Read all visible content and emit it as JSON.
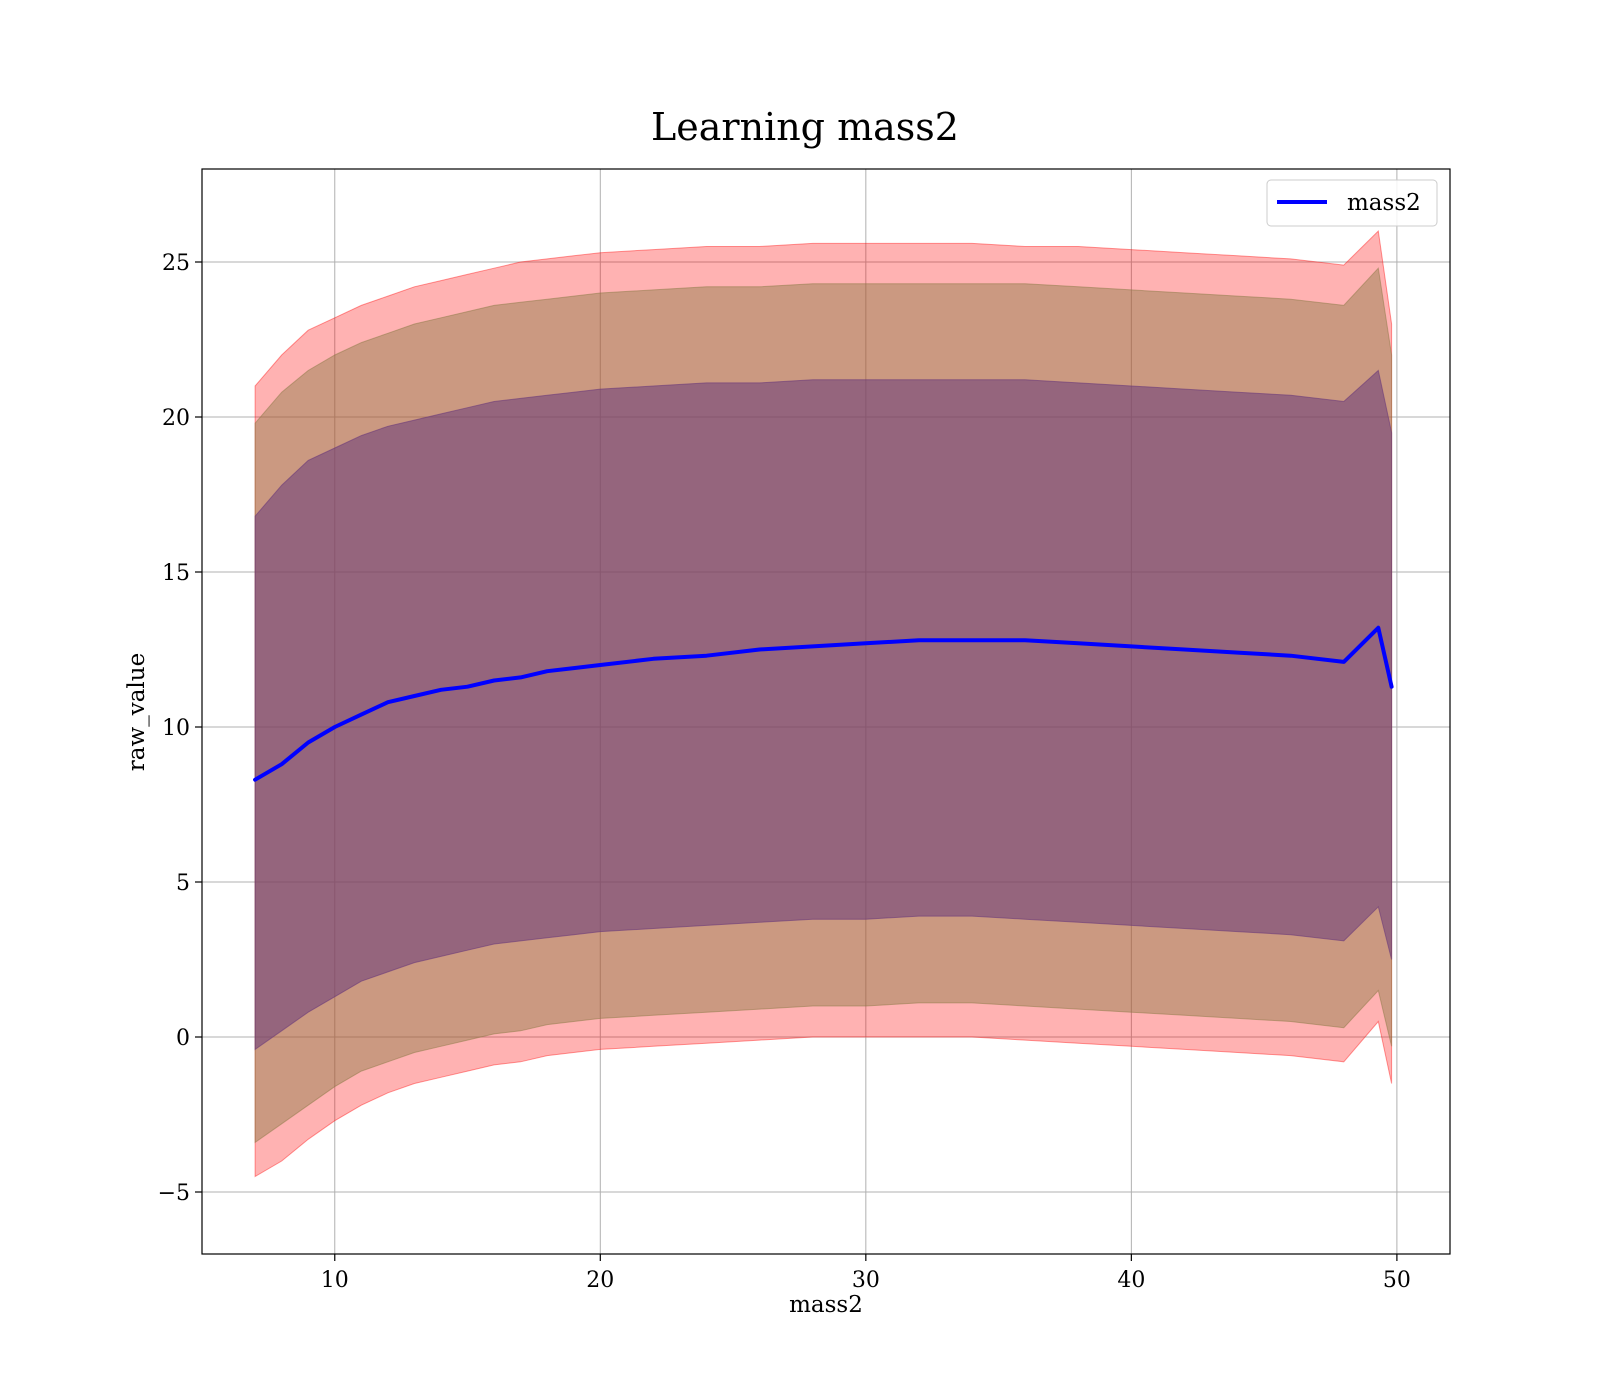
{
  "chart_data": {
    "type": "line",
    "title": "Learning mass2",
    "xlabel": "mass2",
    "ylabel": "raw_value",
    "xlim": [
      5,
      52
    ],
    "ylim": [
      -7,
      28
    ],
    "xticks": [
      10,
      20,
      30,
      40,
      50
    ],
    "yticks": [
      -5,
      0,
      5,
      10,
      15,
      20,
      25
    ],
    "xtick_labels": [
      "10",
      "20",
      "30",
      "40",
      "50"
    ],
    "ytick_labels": [
      "−5",
      "0",
      "5",
      "10",
      "15",
      "20",
      "25"
    ],
    "grid": true,
    "legend": {
      "position": "top-right",
      "entries": [
        "mass2"
      ]
    },
    "colors": {
      "line": "#0000ff",
      "band_outer": "#ff0000",
      "band_mid": "#8b7a45",
      "band_inner": "#6a3a7a",
      "grid": "#b0b0b0"
    },
    "x": [
      7,
      8,
      9,
      10,
      11,
      12,
      13,
      14,
      15,
      16,
      17,
      18,
      19,
      20,
      22,
      24,
      26,
      28,
      30,
      32,
      34,
      36,
      38,
      40,
      42,
      44,
      46,
      48,
      49.3,
      49.8
    ],
    "series": [
      {
        "name": "mass2",
        "role": "line",
        "values": [
          8.3,
          8.8,
          9.5,
          10.0,
          10.4,
          10.8,
          11.0,
          11.2,
          11.3,
          11.5,
          11.6,
          11.8,
          11.9,
          12.0,
          12.2,
          12.3,
          12.5,
          12.6,
          12.7,
          12.8,
          12.8,
          12.8,
          12.7,
          12.6,
          12.5,
          12.4,
          12.3,
          12.1,
          13.2,
          11.3
        ]
      },
      {
        "role": "band_outer",
        "upper": [
          21.0,
          22.0,
          22.8,
          23.2,
          23.6,
          23.9,
          24.2,
          24.4,
          24.6,
          24.8,
          25.0,
          25.1,
          25.2,
          25.3,
          25.4,
          25.5,
          25.5,
          25.6,
          25.6,
          25.6,
          25.6,
          25.5,
          25.5,
          25.4,
          25.3,
          25.2,
          25.1,
          24.9,
          26.0,
          23.0
        ],
        "lower": [
          -4.5,
          -4.0,
          -3.3,
          -2.7,
          -2.2,
          -1.8,
          -1.5,
          -1.3,
          -1.1,
          -0.9,
          -0.8,
          -0.6,
          -0.5,
          -0.4,
          -0.3,
          -0.2,
          -0.1,
          0.0,
          0.0,
          0.0,
          0.0,
          -0.1,
          -0.2,
          -0.3,
          -0.4,
          -0.5,
          -0.6,
          -0.8,
          0.5,
          -1.5
        ]
      },
      {
        "role": "band_mid",
        "upper": [
          19.8,
          20.8,
          21.5,
          22.0,
          22.4,
          22.7,
          23.0,
          23.2,
          23.4,
          23.6,
          23.7,
          23.8,
          23.9,
          24.0,
          24.1,
          24.2,
          24.2,
          24.3,
          24.3,
          24.3,
          24.3,
          24.3,
          24.2,
          24.1,
          24.0,
          23.9,
          23.8,
          23.6,
          24.8,
          22.0
        ]
      },
      {
        "role": "band_mid",
        "lower": [
          -3.4,
          -2.8,
          -2.2,
          -1.6,
          -1.1,
          -0.8,
          -0.5,
          -0.3,
          -0.1,
          0.1,
          0.2,
          0.4,
          0.5,
          0.6,
          0.7,
          0.8,
          0.9,
          1.0,
          1.0,
          1.1,
          1.1,
          1.0,
          0.9,
          0.8,
          0.7,
          0.6,
          0.5,
          0.3,
          1.5,
          -0.3
        ]
      },
      {
        "role": "band_inner",
        "upper": [
          16.8,
          17.8,
          18.6,
          19.0,
          19.4,
          19.7,
          19.9,
          20.1,
          20.3,
          20.5,
          20.6,
          20.7,
          20.8,
          20.9,
          21.0,
          21.1,
          21.1,
          21.2,
          21.2,
          21.2,
          21.2,
          21.2,
          21.1,
          21.0,
          20.9,
          20.8,
          20.7,
          20.5,
          21.5,
          19.5
        ]
      },
      {
        "role": "band_inner",
        "lower": [
          -0.4,
          0.2,
          0.8,
          1.3,
          1.8,
          2.1,
          2.4,
          2.6,
          2.8,
          3.0,
          3.1,
          3.2,
          3.3,
          3.4,
          3.5,
          3.6,
          3.7,
          3.8,
          3.8,
          3.9,
          3.9,
          3.8,
          3.7,
          3.6,
          3.5,
          3.4,
          3.3,
          3.1,
          4.2,
          2.5
        ]
      }
    ]
  }
}
